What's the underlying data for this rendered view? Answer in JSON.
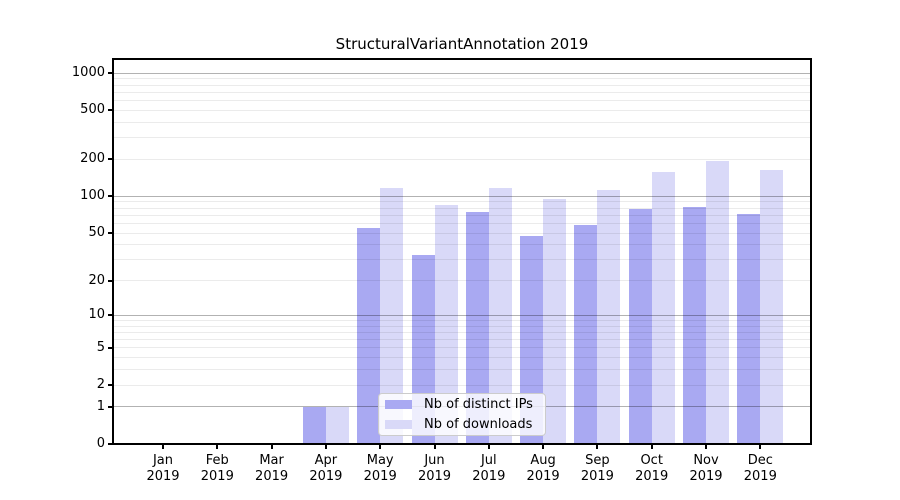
{
  "chart_data": {
    "type": "bar",
    "title": "StructuralVariantAnnotation 2019",
    "categories": [
      "Jan",
      "Feb",
      "Mar",
      "Apr",
      "May",
      "Jun",
      "Jul",
      "Aug",
      "Sep",
      "Oct",
      "Nov",
      "Dec"
    ],
    "category_year": "2019",
    "series": [
      {
        "name": "Nb of distinct IPs",
        "color": "#a9a9f2",
        "values": [
          0,
          0,
          0,
          1,
          55,
          33,
          74,
          47,
          58,
          79,
          82,
          72
        ]
      },
      {
        "name": "Nb of downloads",
        "color": "#d9d9f8",
        "values": [
          0,
          0,
          0,
          1,
          116,
          85,
          118,
          95,
          113,
          158,
          195,
          165
        ]
      }
    ],
    "y_scale": "log10(value+1)",
    "ylim": [
      0,
      1300
    ],
    "y_ticks": [
      0,
      1,
      2,
      5,
      10,
      20,
      50,
      100,
      200,
      500,
      1000
    ],
    "y_major_gridlines": [
      1,
      10,
      100,
      1000
    ],
    "y_minor_gridlines": [
      2,
      3,
      4,
      5,
      6,
      7,
      8,
      9,
      20,
      30,
      40,
      50,
      60,
      70,
      80,
      90,
      200,
      300,
      400,
      500,
      600,
      700,
      800,
      900
    ],
    "grid": true,
    "legend_position": "inside-lower-center",
    "style": {
      "grid_major_color": "rgba(0,0,0,0.30)",
      "grid_minor_color": "rgba(0,0,0,0.08)",
      "axis_color": "#000000"
    }
  }
}
